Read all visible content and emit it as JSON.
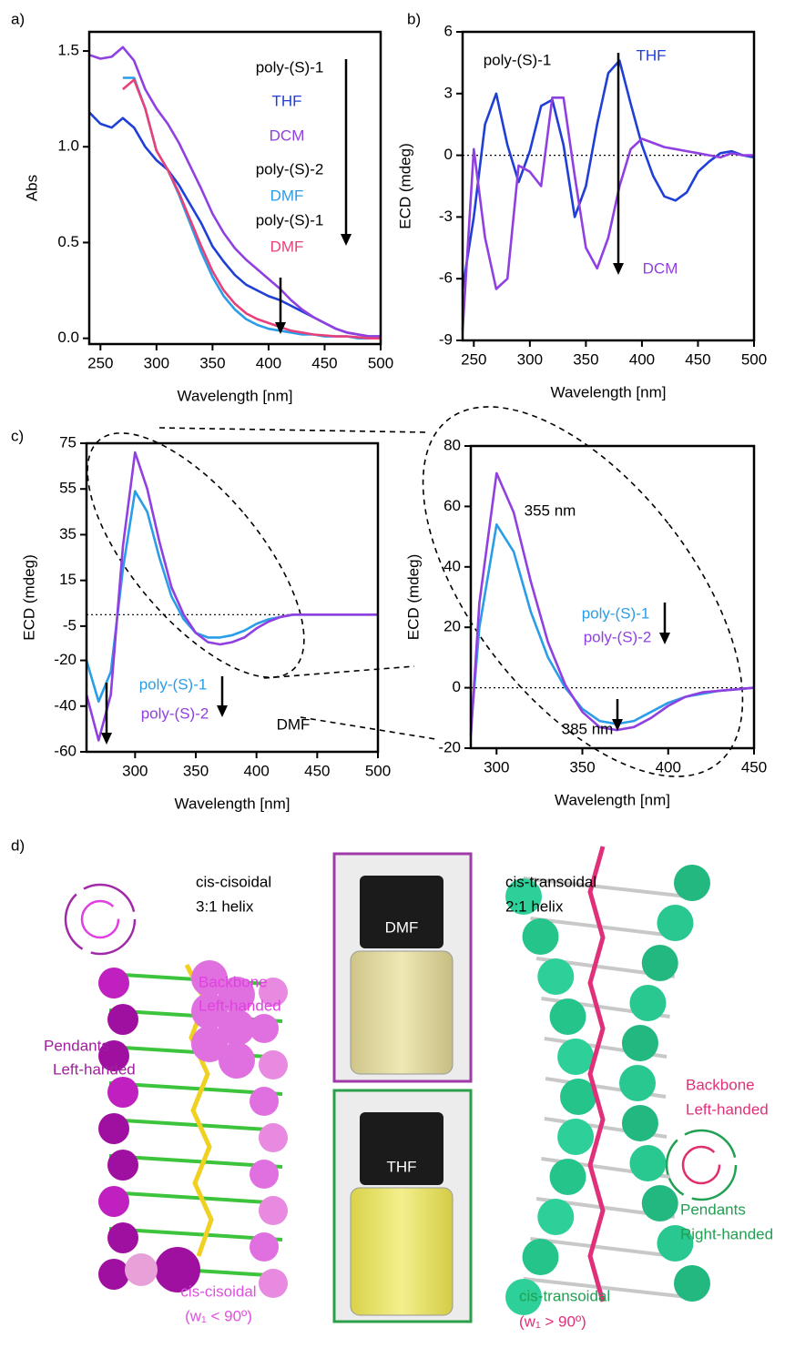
{
  "chart_data": [
    {
      "type": "line",
      "panel_label": "a)",
      "x_label": "Wavelength [nm]",
      "y_label": "Abs",
      "x": [
        240,
        250,
        260,
        270,
        280,
        290,
        300,
        310,
        320,
        330,
        340,
        350,
        360,
        370,
        380,
        390,
        400,
        410,
        420,
        430,
        440,
        450,
        460,
        470,
        480,
        490,
        500
      ],
      "series": [
        {
          "name": "THF",
          "color": "#1f3fd6",
          "values": [
            1.18,
            1.12,
            1.1,
            1.15,
            1.1,
            1.0,
            0.93,
            0.88,
            0.8,
            0.7,
            0.6,
            0.48,
            0.4,
            0.33,
            0.28,
            0.25,
            0.22,
            0.2,
            0.17,
            0.14,
            0.11,
            0.08,
            0.05,
            0.03,
            0.02,
            0.01,
            0.01
          ]
        },
        {
          "name": "DCM",
          "color": "#9040e0",
          "values": [
            1.48,
            1.46,
            1.47,
            1.52,
            1.45,
            1.3,
            1.2,
            1.12,
            1.02,
            0.9,
            0.78,
            0.65,
            0.55,
            0.47,
            0.41,
            0.36,
            0.31,
            0.26,
            0.2,
            0.15,
            0.11,
            0.08,
            0.05,
            0.03,
            0.02,
            0.01,
            0.01
          ]
        },
        {
          "name": "DMF",
          "color": "#2a9de8",
          "values": [
            null,
            null,
            null,
            1.36,
            1.36,
            1.2,
            0.98,
            0.88,
            0.75,
            0.6,
            0.45,
            0.32,
            0.22,
            0.15,
            0.1,
            0.07,
            0.05,
            0.04,
            0.03,
            0.02,
            0.02,
            0.01,
            0.01,
            0.01,
            0,
            0,
            0
          ]
        },
        {
          "name": "DMF",
          "color": "#e8407a",
          "values": [
            null,
            null,
            null,
            1.3,
            1.35,
            1.2,
            0.98,
            0.88,
            0.76,
            0.62,
            0.48,
            0.35,
            0.25,
            0.18,
            0.13,
            0.1,
            0.08,
            0.06,
            0.04,
            0.03,
            0.02,
            0.015,
            0.01,
            0.01,
            0.005,
            0,
            0
          ]
        }
      ],
      "annotations": [
        "poly-(S)-1",
        "poly-(S)-2",
        "poly-(S)-1"
      ],
      "xlim": [
        240,
        500
      ],
      "xticks": [
        250,
        300,
        350,
        400,
        450,
        500
      ],
      "ylim": [
        -0.03,
        1.6
      ],
      "yticks": [
        {
          "value": 0,
          "label": "0.0"
        },
        0.5,
        {
          "value": 1,
          "label": "1.0"
        },
        1.5
      ]
    },
    {
      "type": "line",
      "panel_label": "b)",
      "x_label": "Wavelength [nm]",
      "y_label": "ECD (mdeg)",
      "x": [
        240,
        250,
        260,
        270,
        280,
        290,
        300,
        310,
        320,
        330,
        340,
        350,
        360,
        370,
        380,
        390,
        400,
        410,
        420,
        430,
        440,
        450,
        460,
        470,
        480,
        490,
        500
      ],
      "series": [
        {
          "name": "THF",
          "color": "#1f3fd6",
          "values": [
            -6.5,
            -3,
            1.5,
            3,
            0.5,
            -1.3,
            0.2,
            2.4,
            2.7,
            0.5,
            -3,
            -1.5,
            1.5,
            4,
            4.6,
            2.5,
            0.5,
            -1,
            -2,
            -2.2,
            -1.8,
            -0.8,
            -0.3,
            0.1,
            0.2,
            0,
            -0.1
          ]
        },
        {
          "name": "DCM",
          "color": "#9040e0",
          "values": [
            -8.5,
            0.3,
            -4,
            -6.5,
            -6,
            -0.5,
            -0.8,
            -1.5,
            2.8,
            2.8,
            -1,
            -4.5,
            -5.5,
            -4,
            -1.5,
            0.3,
            0.8,
            0.6,
            0.4,
            0.3,
            0.2,
            0.1,
            0,
            -0.1,
            0.1,
            0,
            0
          ]
        }
      ],
      "annotations": [
        "poly-(S)-1"
      ],
      "xlim": [
        240,
        500
      ],
      "xticks": [
        250,
        300,
        350,
        400,
        450,
        500
      ],
      "ylim": [
        -9,
        6
      ],
      "yticks": [
        -9,
        -6,
        -3,
        0,
        3,
        6
      ]
    },
    {
      "type": "line",
      "panel_label": "c)",
      "x_label": "Wavelength [nm]",
      "y_label": "ECD (mdeg)",
      "x": [
        260,
        270,
        280,
        290,
        300,
        310,
        320,
        330,
        340,
        350,
        360,
        370,
        380,
        390,
        400,
        410,
        420,
        430,
        440,
        450,
        460,
        470,
        480,
        490,
        500
      ],
      "series": [
        {
          "name": "poly-(S)-1",
          "color": "#2a9de8",
          "values": [
            -20,
            -38,
            -25,
            20,
            54,
            45,
            25,
            8,
            -2,
            -8,
            -10,
            -10,
            -9,
            -7,
            -4,
            -2,
            -1,
            0,
            0,
            0,
            0,
            0,
            0,
            0,
            0
          ]
        },
        {
          "name": "poly-(S)-2",
          "color": "#9040e0",
          "values": [
            -35,
            -55,
            -35,
            30,
            71,
            55,
            32,
            12,
            0,
            -8,
            -12,
            -13,
            -12,
            -10,
            -6,
            -3,
            -1,
            0,
            0,
            0,
            0,
            0,
            0,
            0,
            0
          ]
        }
      ],
      "annotations": [
        "DMF"
      ],
      "xlim": [
        260,
        500
      ],
      "xticks": [
        300,
        350,
        400,
        450,
        500
      ],
      "ylim": [
        -60,
        75
      ],
      "yticks": [
        -60,
        -40,
        -20,
        -5,
        15,
        35,
        55,
        75
      ]
    },
    {
      "type": "line",
      "x_label": "Wavelength [nm]",
      "y_label": "ECD (mdeg)",
      "x": [
        285,
        290,
        300,
        310,
        320,
        330,
        340,
        350,
        360,
        370,
        380,
        390,
        400,
        410,
        420,
        430,
        440,
        450
      ],
      "series": [
        {
          "name": "poly-(S)-1",
          "color": "#2a9de8",
          "values": [
            -14,
            20,
            54,
            45,
            25,
            10,
            0,
            -7,
            -11,
            -12,
            -11,
            -8,
            -5,
            -3,
            -2,
            -1,
            -0.5,
            0
          ]
        },
        {
          "name": "poly-(S)-2",
          "color": "#9040e0",
          "values": [
            -16,
            28,
            71,
            58,
            35,
            15,
            1,
            -8,
            -13,
            -14,
            -13,
            -10,
            -6,
            -3,
            -1.5,
            -1,
            -0.5,
            0
          ]
        }
      ],
      "annotations": [
        "355 nm",
        "385 nm"
      ],
      "xlim": [
        285,
        450
      ],
      "xticks": [
        300,
        350,
        400,
        450
      ],
      "ylim": [
        -20,
        80
      ],
      "yticks": [
        -20,
        0,
        20,
        40,
        60,
        80
      ]
    }
  ],
  "panel_d": {
    "panel_label": "d)",
    "left_title": [
      "cis-cisoidal",
      "3:1 helix"
    ],
    "left_backbone": [
      "Backbone",
      "Left-handed"
    ],
    "left_pendants": [
      "Pendants",
      "Left-handed"
    ],
    "left_caption": [
      "cis-cisoidal",
      "(w₁ < 90º)"
    ],
    "vial_top": "DMF",
    "vial_bottom": "THF",
    "right_title": [
      "cis-transoidal",
      "2:1 helix"
    ],
    "right_backbone": [
      "Backbone",
      "Left-handed"
    ],
    "right_pendants": [
      "Pendants",
      "Right-handed"
    ],
    "right_caption": [
      "cis-transoidal",
      "(w₁ > 90º)"
    ]
  }
}
